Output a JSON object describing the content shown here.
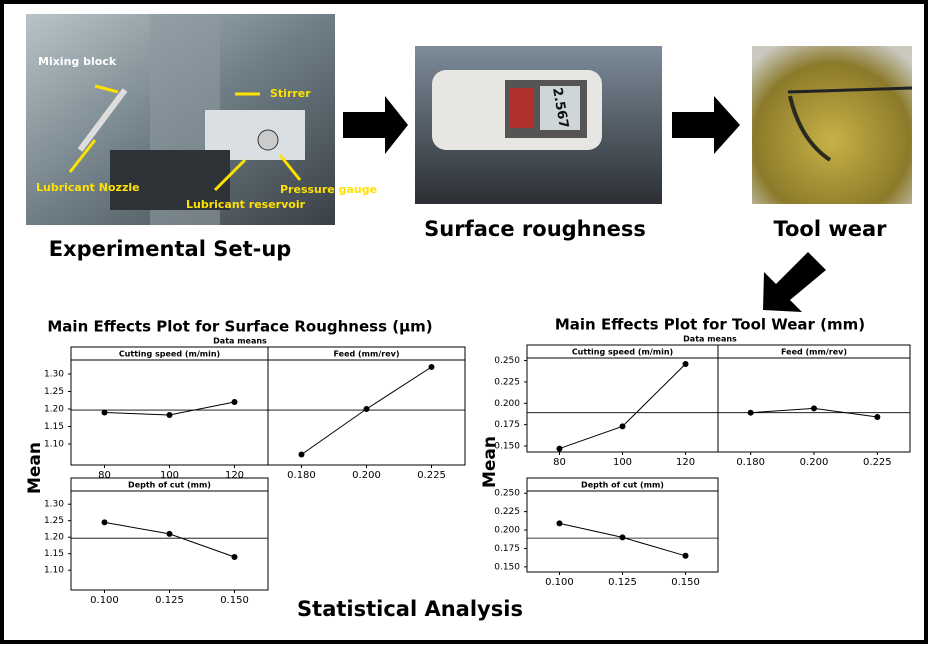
{
  "flow": {
    "setup": {
      "caption": "Experimental Set-up",
      "labels": [
        "Mixing block",
        "Stirrer",
        "Lubricant Nozzle",
        "Lubricant reservoir",
        "Pressure gauge"
      ]
    },
    "roughness": {
      "caption": "Surface roughness",
      "reading": "2.567"
    },
    "wear": {
      "caption": "Tool wear"
    },
    "analysis": {
      "caption": "Statistical Analysis"
    }
  },
  "chart_data": [
    {
      "type": "line",
      "title": "Main Effects Plot for Surface Roughness (µm)",
      "subtitle": "Data means",
      "ylabel": "Mean",
      "ylim": [
        1.04,
        1.34
      ],
      "yticks": [
        {
          "value": 1.1,
          "label": "1.10"
        },
        {
          "value": 1.15,
          "label": "1.15"
        },
        {
          "value": 1.2,
          "label": "1.20"
        },
        {
          "value": 1.25,
          "label": "1.25"
        },
        {
          "value": 1.3,
          "label": "1.30"
        }
      ],
      "reference_line": 1.197,
      "color": "#000000",
      "panels": [
        {
          "title": "Cutting speed (m/min)",
          "categories": [
            "80",
            "100",
            "120"
          ],
          "values": [
            1.19,
            1.183,
            1.22
          ]
        },
        {
          "title": "Feed (mm/rev)",
          "categories": [
            "0.180",
            "0.200",
            "0.225"
          ],
          "values": [
            1.07,
            1.2,
            1.32
          ]
        },
        {
          "title": "Depth of cut (mm)",
          "categories": [
            "0.100",
            "0.125",
            "0.150"
          ],
          "values": [
            1.245,
            1.21,
            1.14
          ]
        }
      ]
    },
    {
      "type": "line",
      "title": "Main Effects Plot for Tool Wear (mm)",
      "subtitle": "Data means",
      "ylabel": "Mean",
      "ylim": [
        0.143,
        0.253
      ],
      "yticks": [
        {
          "value": 0.15,
          "label": "0.150"
        },
        {
          "value": 0.175,
          "label": "0.175"
        },
        {
          "value": 0.2,
          "label": "0.200"
        },
        {
          "value": 0.225,
          "label": "0.225"
        },
        {
          "value": 0.25,
          "label": "0.250"
        }
      ],
      "reference_line": 0.189,
      "color": "#000000",
      "panels": [
        {
          "title": "Cutting speed (m/min)",
          "categories": [
            "80",
            "100",
            "120"
          ],
          "values": [
            0.147,
            0.173,
            0.246
          ]
        },
        {
          "title": "Feed (mm/rev)",
          "categories": [
            "0.180",
            "0.200",
            "0.225"
          ],
          "values": [
            0.189,
            0.194,
            0.184
          ]
        },
        {
          "title": "Depth of cut (mm)",
          "categories": [
            "0.100",
            "0.125",
            "0.150"
          ],
          "values": [
            0.209,
            0.19,
            0.165
          ]
        }
      ]
    }
  ]
}
